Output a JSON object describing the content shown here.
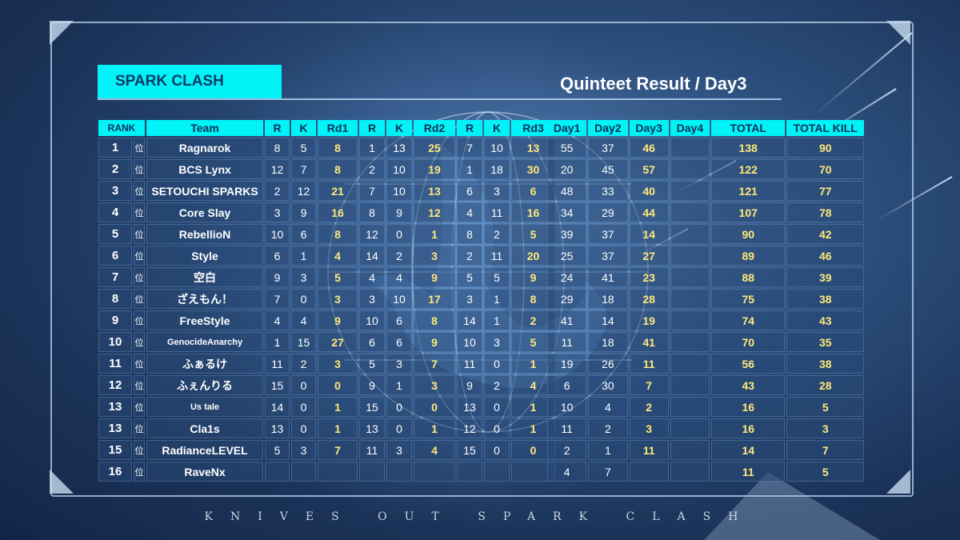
{
  "brand": "SPARK CLASH",
  "title": "Quinteet Result / Day3",
  "footer": "KNIVES OUT SPARK CLASH",
  "rank_suffix": "位",
  "headers_left": [
    "RANK",
    "Team",
    "R",
    "K",
    "Rd1",
    "R",
    "K",
    "Rd2",
    "R",
    "K",
    "Rd3"
  ],
  "headers_right": [
    "Day1",
    "Day2",
    "Day3",
    "Day4",
    "TOTAL",
    "TOTAL KILL"
  ],
  "rows": [
    {
      "rank": "1",
      "team": "Ragnarok",
      "r1": "8",
      "k1": "5",
      "rd1": "8",
      "r2": "1",
      "k2": "13",
      "rd2": "25",
      "r3": "7",
      "k3": "10",
      "rd3": "13",
      "day1": "55",
      "day2": "37",
      "day3": "46",
      "day4": "",
      "total": "138",
      "kill": "90"
    },
    {
      "rank": "2",
      "team": "BCS Lynx",
      "r1": "12",
      "k1": "7",
      "rd1": "8",
      "r2": "2",
      "k2": "10",
      "rd2": "19",
      "r3": "1",
      "k3": "18",
      "rd3": "30",
      "day1": "20",
      "day2": "45",
      "day3": "57",
      "day4": "",
      "total": "122",
      "kill": "70"
    },
    {
      "rank": "3",
      "team": "SETOUCHI SPARKS",
      "r1": "2",
      "k1": "12",
      "rd1": "21",
      "r2": "7",
      "k2": "10",
      "rd2": "13",
      "r3": "6",
      "k3": "3",
      "rd3": "6",
      "day1": "48",
      "day2": "33",
      "day3": "40",
      "day4": "",
      "total": "121",
      "kill": "77"
    },
    {
      "rank": "4",
      "team": "Core Slay",
      "r1": "3",
      "k1": "9",
      "rd1": "16",
      "r2": "8",
      "k2": "9",
      "rd2": "12",
      "r3": "4",
      "k3": "11",
      "rd3": "16",
      "day1": "34",
      "day2": "29",
      "day3": "44",
      "day4": "",
      "total": "107",
      "kill": "78"
    },
    {
      "rank": "5",
      "team": "RebellioN",
      "r1": "10",
      "k1": "6",
      "rd1": "8",
      "r2": "12",
      "k2": "0",
      "rd2": "1",
      "r3": "8",
      "k3": "2",
      "rd3": "5",
      "day1": "39",
      "day2": "37",
      "day3": "14",
      "day4": "",
      "total": "90",
      "kill": "42"
    },
    {
      "rank": "6",
      "team": "Style",
      "r1": "6",
      "k1": "1",
      "rd1": "4",
      "r2": "14",
      "k2": "2",
      "rd2": "3",
      "r3": "2",
      "k3": "11",
      "rd3": "20",
      "day1": "25",
      "day2": "37",
      "day3": "27",
      "day4": "",
      "total": "89",
      "kill": "46"
    },
    {
      "rank": "7",
      "team": "空白",
      "r1": "9",
      "k1": "3",
      "rd1": "5",
      "r2": "4",
      "k2": "4",
      "rd2": "9",
      "r3": "5",
      "k3": "5",
      "rd3": "9",
      "day1": "24",
      "day2": "41",
      "day3": "23",
      "day4": "",
      "total": "88",
      "kill": "39"
    },
    {
      "rank": "8",
      "team": "ざえもん！",
      "r1": "7",
      "k1": "0",
      "rd1": "3",
      "r2": "3",
      "k2": "10",
      "rd2": "17",
      "r3": "3",
      "k3": "1",
      "rd3": "8",
      "day1": "29",
      "day2": "18",
      "day3": "28",
      "day4": "",
      "total": "75",
      "kill": "38"
    },
    {
      "rank": "9",
      "team": "FreeStyle",
      "r1": "4",
      "k1": "4",
      "rd1": "9",
      "r2": "10",
      "k2": "6",
      "rd2": "8",
      "r3": "14",
      "k3": "1",
      "rd3": "2",
      "day1": "41",
      "day2": "14",
      "day3": "19",
      "day4": "",
      "total": "74",
      "kill": "43"
    },
    {
      "rank": "10",
      "team": "GenocideAnarchy",
      "r1": "1",
      "k1": "15",
      "rd1": "27",
      "r2": "6",
      "k2": "6",
      "rd2": "9",
      "r3": "10",
      "k3": "3",
      "rd3": "5",
      "day1": "11",
      "day2": "18",
      "day3": "41",
      "day4": "",
      "total": "70",
      "kill": "35"
    },
    {
      "rank": "11",
      "team": "ふぁるけ",
      "r1": "11",
      "k1": "2",
      "rd1": "3",
      "r2": "5",
      "k2": "3",
      "rd2": "7",
      "r3": "11",
      "k3": "0",
      "rd3": "1",
      "day1": "19",
      "day2": "26",
      "day3": "11",
      "day4": "",
      "total": "56",
      "kill": "38"
    },
    {
      "rank": "12",
      "team": "ふぇんりる",
      "r1": "15",
      "k1": "0",
      "rd1": "0",
      "r2": "9",
      "k2": "1",
      "rd2": "3",
      "r3": "9",
      "k3": "2",
      "rd3": "4",
      "day1": "6",
      "day2": "30",
      "day3": "7",
      "day4": "",
      "total": "43",
      "kill": "28"
    },
    {
      "rank": "13",
      "team": "Us tale",
      "r1": "14",
      "k1": "0",
      "rd1": "1",
      "r2": "15",
      "k2": "0",
      "rd2": "0",
      "r3": "13",
      "k3": "0",
      "rd3": "1",
      "day1": "10",
      "day2": "4",
      "day3": "2",
      "day4": "",
      "total": "16",
      "kill": "5"
    },
    {
      "rank": "13",
      "team": "Cla1s",
      "r1": "13",
      "k1": "0",
      "rd1": "1",
      "r2": "13",
      "k2": "0",
      "rd2": "1",
      "r3": "12",
      "k3": "0",
      "rd3": "1",
      "day1": "11",
      "day2": "2",
      "day3": "3",
      "day4": "",
      "total": "16",
      "kill": "3"
    },
    {
      "rank": "15",
      "team": "RadianceLEVEL",
      "r1": "5",
      "k1": "3",
      "rd1": "7",
      "r2": "11",
      "k2": "3",
      "rd2": "4",
      "r3": "15",
      "k3": "0",
      "rd3": "0",
      "day1": "2",
      "day2": "1",
      "day3": "11",
      "day4": "",
      "total": "14",
      "kill": "7"
    },
    {
      "rank": "16",
      "team": "RaveNx",
      "r1": "",
      "k1": "",
      "rd1": "",
      "r2": "",
      "k2": "",
      "rd2": "",
      "r3": "",
      "k3": "",
      "rd3": "",
      "day1": "4",
      "day2": "7",
      "day3": "",
      "day4": "",
      "total": "11",
      "kill": "5"
    }
  ]
}
